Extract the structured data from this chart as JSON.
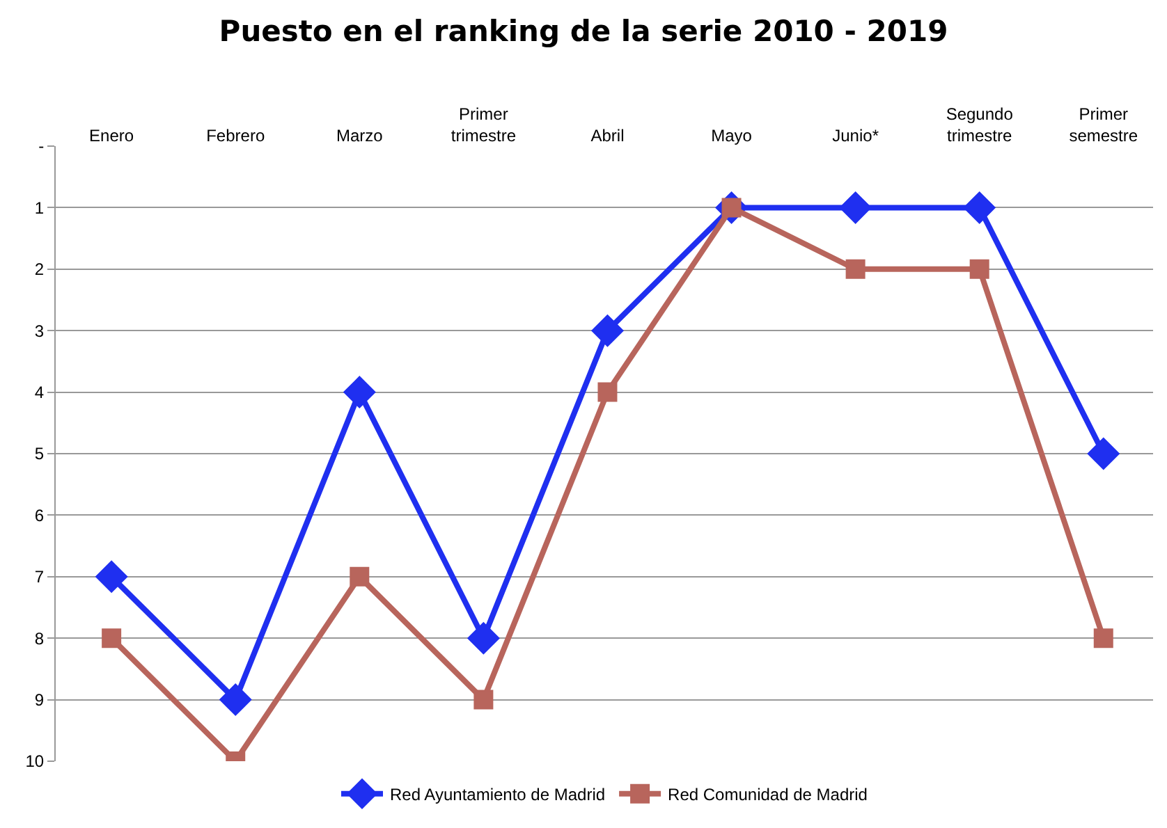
{
  "chart_data": {
    "type": "line",
    "title": "Puesto en el ranking de la serie 2010 - 2019",
    "categories": [
      "Enero",
      "Febrero",
      "Marzo",
      "Primer trimestre",
      "Abril",
      "Mayo",
      "Junio*",
      "Segundo trimestre",
      "Primer semestre"
    ],
    "series": [
      {
        "name": "Red Ayuntamiento de Madrid",
        "color": "#1f2ff0",
        "marker": "diamond",
        "values": [
          7,
          9,
          4,
          8,
          3,
          1,
          1,
          1,
          5
        ]
      },
      {
        "name": "Red Comunidad de Madrid",
        "color": "#b8655c",
        "marker": "square",
        "values": [
          8,
          10,
          7,
          9,
          4,
          1,
          2,
          2,
          8
        ]
      }
    ],
    "ylim": [
      10,
      0
    ],
    "yticks": [
      {
        "value": 0,
        "label": "-"
      },
      1,
      2,
      3,
      4,
      5,
      6,
      7,
      8,
      9,
      10
    ],
    "grid": "y",
    "legend": "bottom",
    "line_style": "solid"
  }
}
